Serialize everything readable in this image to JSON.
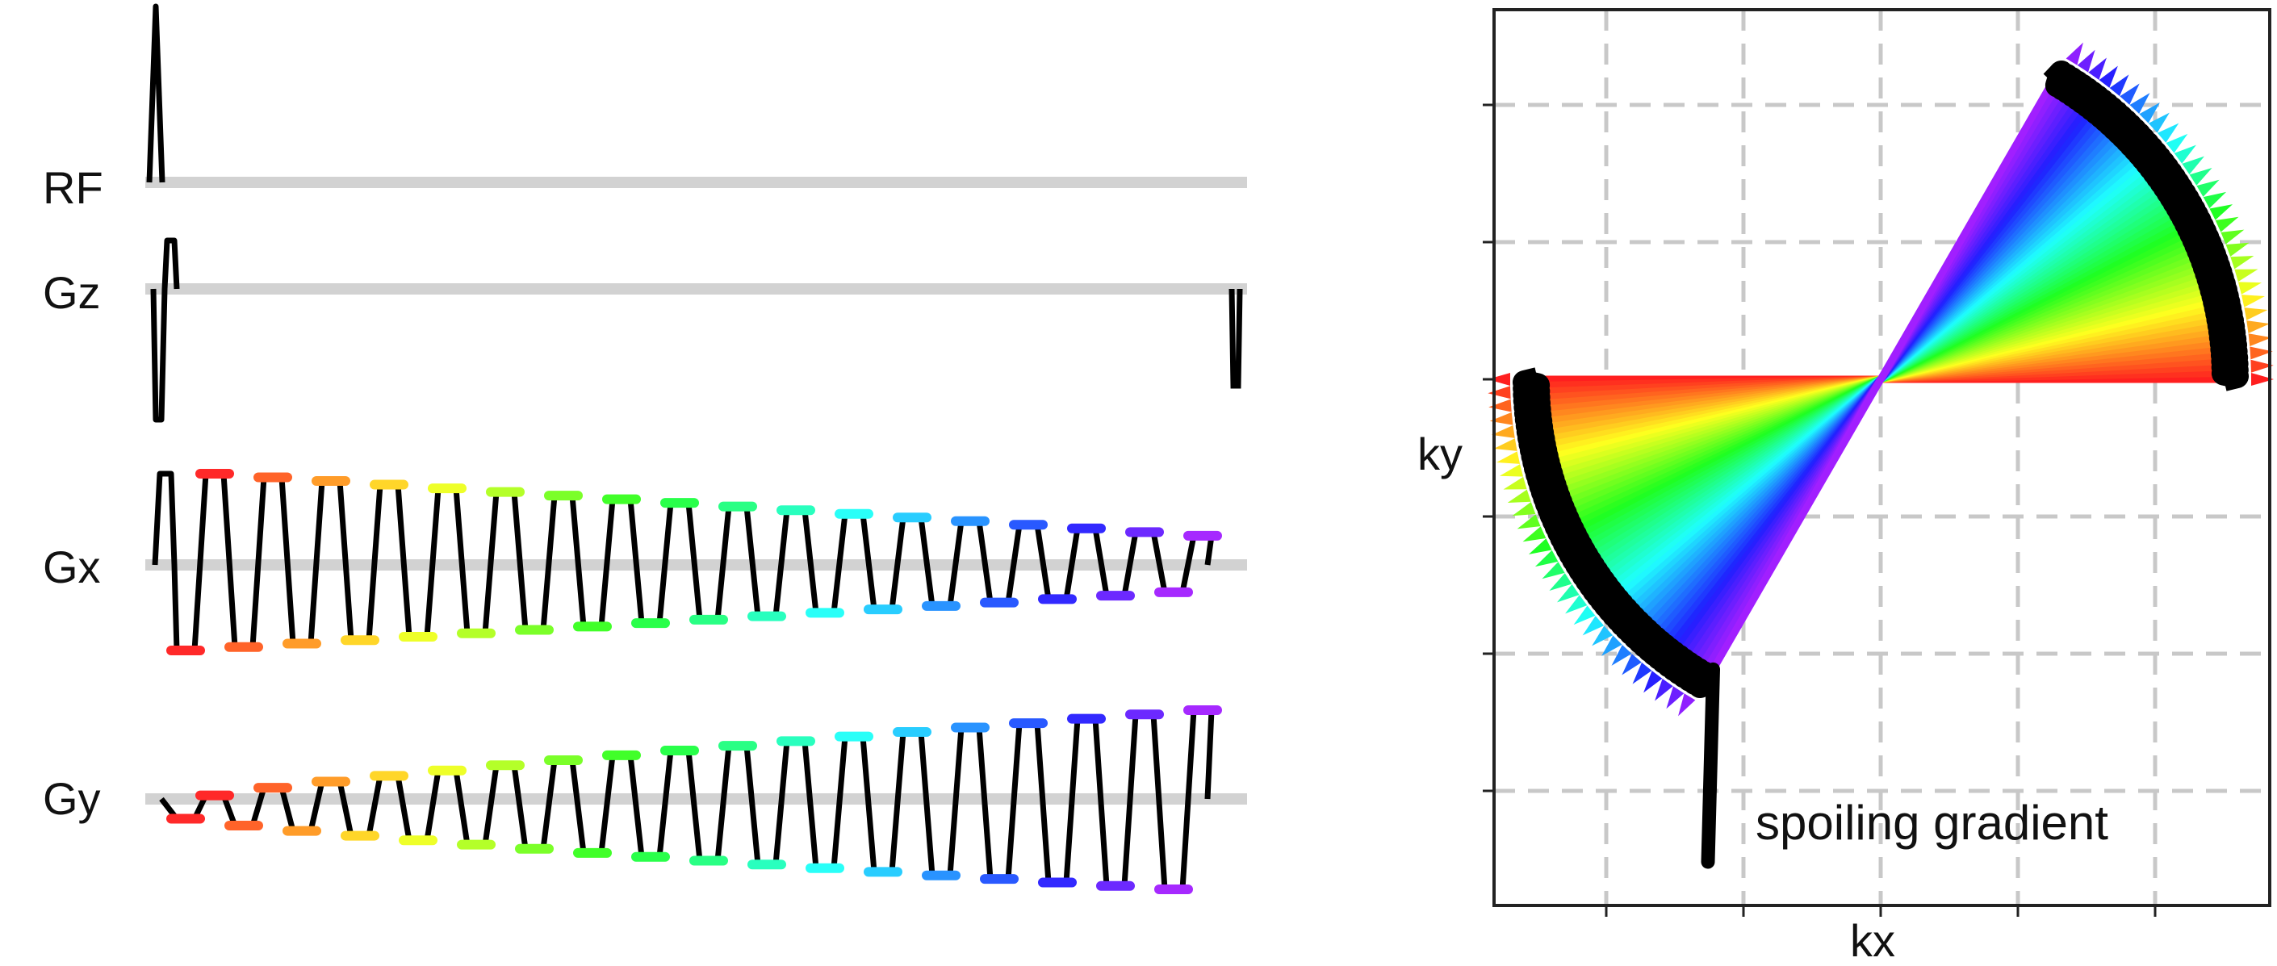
{
  "sequence_diagram": {
    "channels": [
      {
        "id": "rf",
        "label": "RF"
      },
      {
        "id": "gz",
        "label": "Gz"
      },
      {
        "id": "gx",
        "label": "Gx"
      },
      {
        "id": "gy",
        "label": "Gy"
      }
    ],
    "readout_lobes": 18,
    "gx_amplitude_start": 1.0,
    "gx_amplitude_end": 0.32,
    "gy_amplitude_start": 0.04,
    "gy_amplitude_end": 1.0,
    "colormap": "rainbow (red to violet)",
    "baseline_color": "#d2d2d2",
    "trace_color": "#000000"
  },
  "kspace_plot": {
    "xlabel": "kx",
    "ylabel": "ky",
    "annotation": "spoiling gradient",
    "grid": true,
    "grid_style": "dashed light gray",
    "trajectory": "rosette-like sweep of radial spokes from 0 to 180 degrees, rainbow colored, with black saw-tooth outer rim and a black spoiling tail",
    "spoke_count": 60,
    "colors": {
      "start": "#ff0000",
      "end": "#8000ff",
      "rim": "#000000"
    }
  }
}
